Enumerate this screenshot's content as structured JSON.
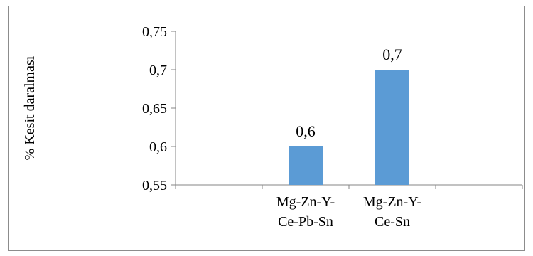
{
  "chart_data": {
    "type": "bar",
    "title": "",
    "xlabel": "",
    "ylabel": "% Kesit daralması",
    "ylim": [
      0.55,
      0.75
    ],
    "yticks": [
      "0,55",
      "0,6",
      "0,65",
      "0,7",
      "0,75"
    ],
    "ytick_values": [
      0.55,
      0.6,
      0.65,
      0.7,
      0.75
    ],
    "categories": [
      [
        "",
        ""
      ],
      [
        "Mg-Zn-Y-",
        "Ce-Pb-Sn"
      ],
      [
        "Mg-Zn-Y-",
        "Ce-Sn"
      ],
      [
        "",
        ""
      ]
    ],
    "values": [
      null,
      0.6,
      0.7,
      null
    ],
    "data_labels": [
      "",
      "0,6",
      "0,7",
      ""
    ],
    "bar_color": "#5b9bd5",
    "grid": false,
    "legend": "none"
  }
}
